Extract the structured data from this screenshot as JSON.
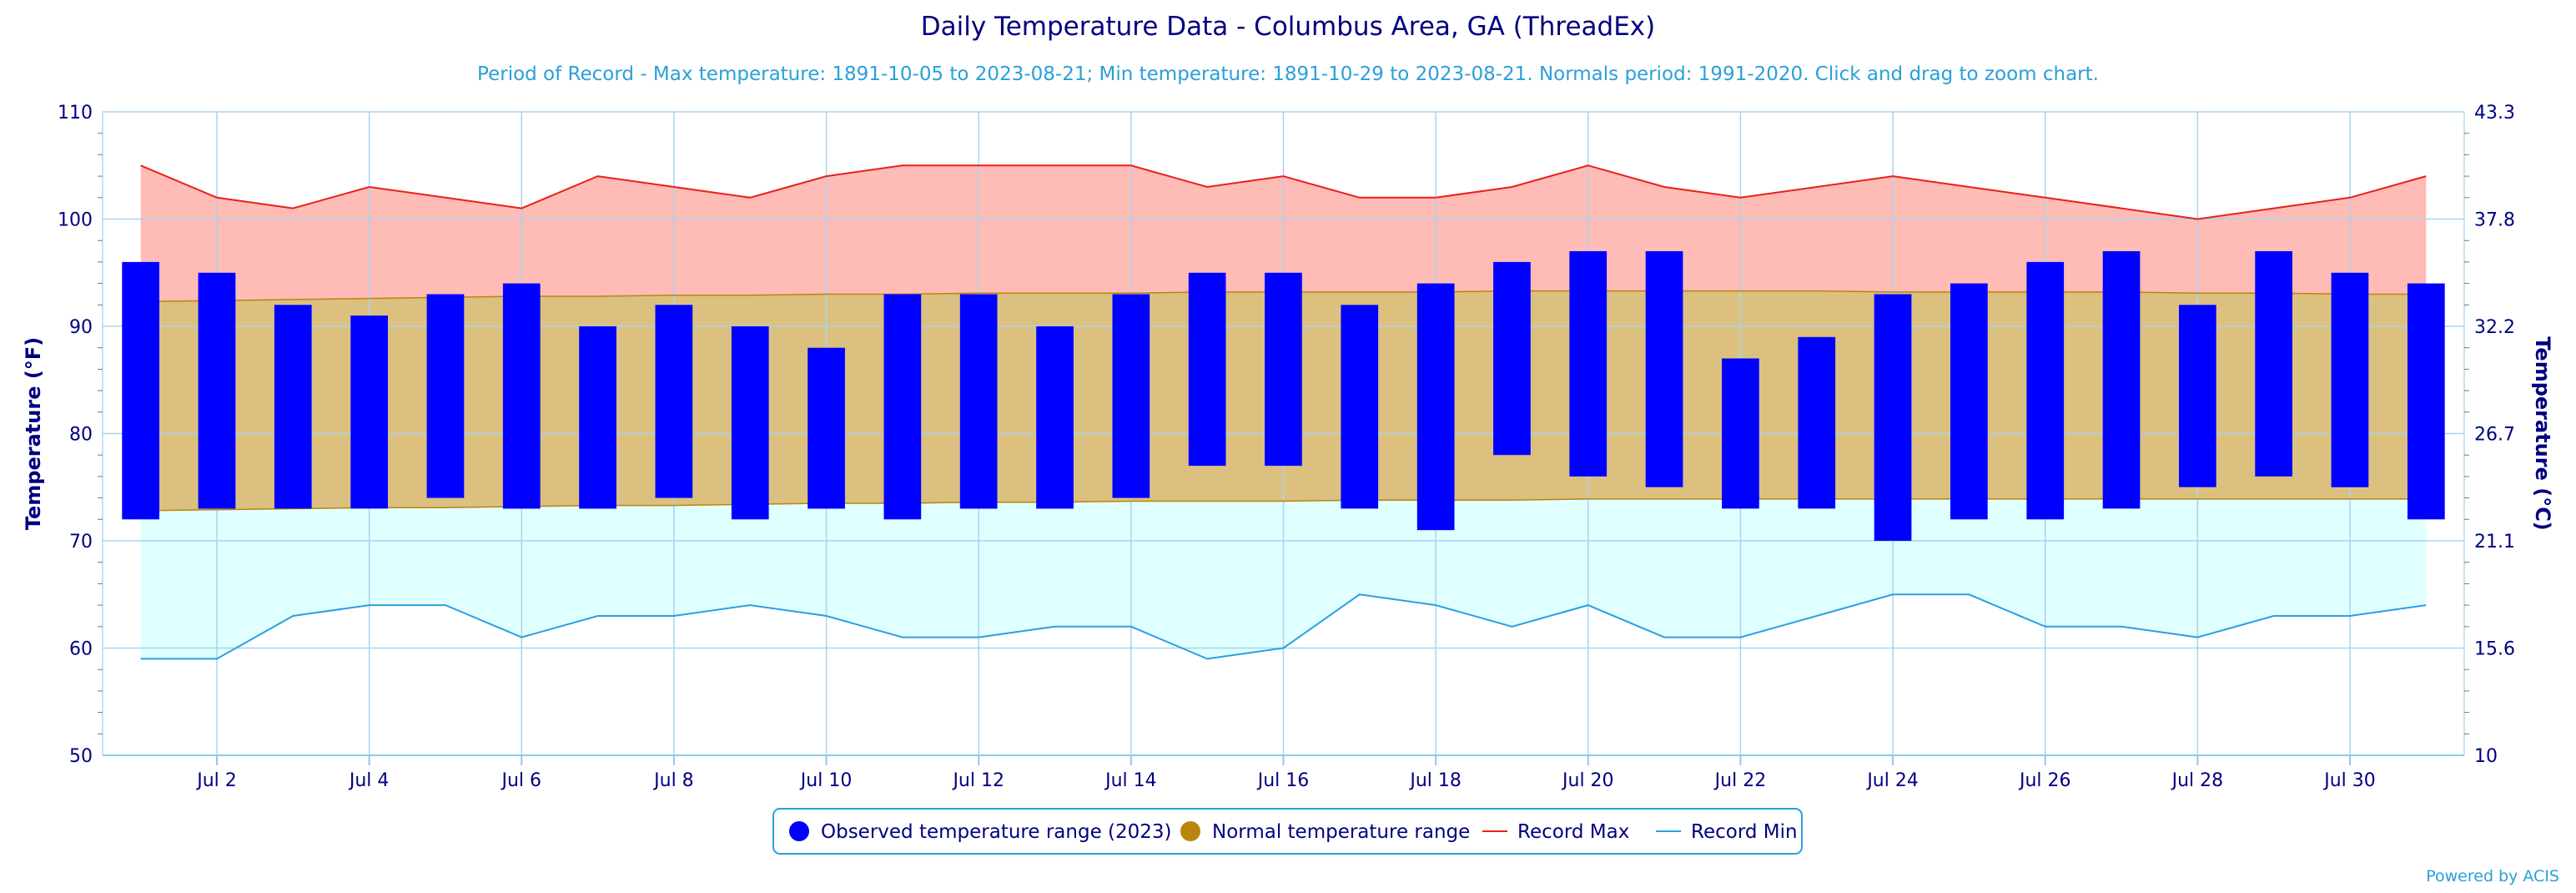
{
  "chart_data": {
    "type": "bar",
    "title": "Daily Temperature Data - Columbus Area, GA (ThreadEx)",
    "subtitle": "Period of Record - Max temperature: 1891-10-05 to 2023-08-21; Min temperature: 1891-10-29 to 2023-08-21. Normals period: 1991-2020. Click and drag to zoom chart.",
    "ylabel_left": "Temperature (°F)",
    "ylabel_right": "Temperature (°C)",
    "ylim": [
      50,
      110
    ],
    "y_ticks_left": [
      "50",
      "60",
      "70",
      "80",
      "90",
      "100",
      "110"
    ],
    "y_ticks_right": [
      "10",
      "15.6",
      "21.1",
      "26.7",
      "32.2",
      "37.8",
      "43.3"
    ],
    "x": [
      1,
      2,
      3,
      4,
      5,
      6,
      7,
      8,
      9,
      10,
      11,
      12,
      13,
      14,
      15,
      16,
      17,
      18,
      19,
      20,
      21,
      22,
      23,
      24,
      25,
      26,
      27,
      28,
      29,
      30,
      31
    ],
    "xlim": [
      0.5,
      31.5
    ],
    "x_tick_positions": [
      2,
      4,
      6,
      8,
      10,
      12,
      14,
      16,
      18,
      20,
      22,
      24,
      26,
      28,
      30
    ],
    "x_tick_labels": [
      "Jul 2",
      "Jul 4",
      "Jul 6",
      "Jul 8",
      "Jul 10",
      "Jul 12",
      "Jul 14",
      "Jul 16",
      "Jul 18",
      "Jul 20",
      "Jul 22",
      "Jul 24",
      "Jul 26",
      "Jul 28",
      "Jul 30"
    ],
    "series": [
      {
        "name": "Observed temperature range (2023)",
        "kind": "range-bar",
        "color": "#0000ff",
        "high": [
          96,
          95,
          92,
          91,
          93,
          94,
          90,
          92,
          90,
          88,
          93,
          93,
          90,
          93,
          95,
          95,
          92,
          94,
          96,
          97,
          97,
          87,
          89,
          93,
          94,
          96,
          97,
          92,
          97,
          95,
          94
        ],
        "low": [
          72,
          73,
          73,
          73,
          74,
          73,
          73,
          74,
          72,
          73,
          72,
          73,
          73,
          74,
          77,
          77,
          73,
          71,
          78,
          76,
          75,
          73,
          73,
          70,
          72,
          72,
          73,
          75,
          76,
          75,
          72
        ]
      },
      {
        "name": "Normal temperature range",
        "kind": "band",
        "color": "#b8860b",
        "fill": "#dcc080",
        "high": [
          92.3,
          92.4,
          92.5,
          92.6,
          92.7,
          92.8,
          92.8,
          92.9,
          92.9,
          93.0,
          93.0,
          93.1,
          93.1,
          93.1,
          93.2,
          93.2,
          93.2,
          93.2,
          93.3,
          93.3,
          93.3,
          93.3,
          93.3,
          93.2,
          93.2,
          93.2,
          93.2,
          93.1,
          93.1,
          93.0,
          93.0
        ],
        "low": [
          72.8,
          72.9,
          73.0,
          73.1,
          73.1,
          73.2,
          73.3,
          73.3,
          73.4,
          73.5,
          73.5,
          73.6,
          73.6,
          73.7,
          73.7,
          73.7,
          73.8,
          73.8,
          73.8,
          73.9,
          73.9,
          73.9,
          73.9,
          73.9,
          73.9,
          73.9,
          73.9,
          73.9,
          73.9,
          73.9,
          73.9
        ]
      },
      {
        "name": "Record Max",
        "kind": "line",
        "color": "#e8201a",
        "fill": "#ffbbb6",
        "values": [
          105,
          102,
          101,
          103,
          102,
          101,
          104,
          103,
          102,
          104,
          105,
          105,
          105,
          105,
          103,
          104,
          102,
          102,
          103,
          105,
          103,
          102,
          103,
          104,
          103,
          102,
          101,
          100,
          101,
          102,
          104
        ]
      },
      {
        "name": "Record Min",
        "kind": "line",
        "color": "#2aa0e0",
        "fill": "#e0ffff",
        "values": [
          59,
          59,
          63,
          64,
          64,
          61,
          63,
          63,
          64,
          63,
          61,
          61,
          62,
          62,
          59,
          60,
          65,
          64,
          62,
          64,
          61,
          61,
          63,
          65,
          65,
          62,
          62,
          61,
          63,
          63,
          64
        ]
      }
    ],
    "grid": true,
    "legend_position": "bottom-center",
    "credit": "Powered by ACIS"
  }
}
